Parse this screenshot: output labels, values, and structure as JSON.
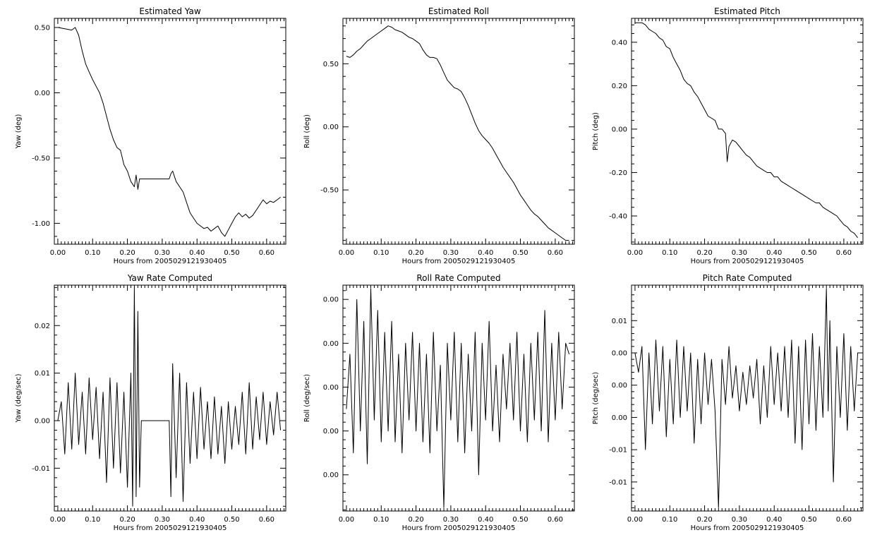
{
  "figure": {
    "background": "#ffffff",
    "line_color": "#000000"
  },
  "chart_data": [
    {
      "type": "line",
      "title": "Estimated Yaw",
      "xlabel": "Hours from 2005029121930405",
      "ylabel": "Yaw (deg)",
      "xlim": [
        -0.01,
        0.655
      ],
      "ylim": [
        -1.16,
        0.57
      ],
      "xticks": [
        0.0,
        0.1,
        0.2,
        0.3,
        0.4,
        0.5,
        0.6
      ],
      "xtick_labels": [
        "0.00",
        "0.10",
        "0.20",
        "0.30",
        "0.40",
        "0.50",
        "0.60"
      ],
      "yticks": [
        0.5,
        0.0,
        -0.5,
        -1.0
      ],
      "ytick_labels": [
        "0.50",
        "0.00",
        "-0.50",
        "-1.00"
      ],
      "grid": false,
      "series": [
        {
          "x": [
            0.0,
            0.02,
            0.04,
            0.05,
            0.06,
            0.07,
            0.08,
            0.09,
            0.1,
            0.11,
            0.12,
            0.13,
            0.14,
            0.15,
            0.16,
            0.17,
            0.18,
            0.19,
            0.2,
            0.21,
            0.22,
            0.225,
            0.23,
            0.235,
            0.25,
            0.28,
            0.32,
            0.325,
            0.33,
            0.335,
            0.34,
            0.35,
            0.36,
            0.37,
            0.38,
            0.39,
            0.4,
            0.41,
            0.42,
            0.43,
            0.44,
            0.45,
            0.46,
            0.47,
            0.48,
            0.49,
            0.5,
            0.51,
            0.52,
            0.53,
            0.54,
            0.55,
            0.56,
            0.57,
            0.58,
            0.59,
            0.6,
            0.61,
            0.62,
            0.63,
            0.64
          ],
          "y": [
            0.5,
            0.49,
            0.48,
            0.5,
            0.44,
            0.32,
            0.22,
            0.16,
            0.1,
            0.05,
            0.0,
            -0.08,
            -0.18,
            -0.28,
            -0.36,
            -0.42,
            -0.44,
            -0.55,
            -0.6,
            -0.68,
            -0.72,
            -0.63,
            -0.74,
            -0.66,
            -0.66,
            -0.66,
            -0.66,
            -0.62,
            -0.6,
            -0.64,
            -0.68,
            -0.72,
            -0.76,
            -0.84,
            -0.92,
            -0.96,
            -1.0,
            -1.02,
            -1.04,
            -1.03,
            -1.06,
            -1.04,
            -1.02,
            -1.07,
            -1.1,
            -1.05,
            -1.0,
            -0.95,
            -0.92,
            -0.95,
            -0.93,
            -0.96,
            -0.94,
            -0.9,
            -0.86,
            -0.82,
            -0.85,
            -0.83,
            -0.84,
            -0.82,
            -0.8
          ]
        }
      ]
    },
    {
      "type": "line",
      "title": "Estimated Roll",
      "xlabel": "Hours from 2005029121930405",
      "ylabel": "Roll (deg)",
      "xlim": [
        -0.01,
        0.655
      ],
      "ylim": [
        -0.93,
        0.86
      ],
      "xticks": [
        0.0,
        0.1,
        0.2,
        0.3,
        0.4,
        0.5,
        0.6
      ],
      "xtick_labels": [
        "0.00",
        "0.10",
        "0.20",
        "0.30",
        "0.40",
        "0.50",
        "0.60"
      ],
      "yticks": [
        0.5,
        0.0,
        -0.5
      ],
      "ytick_labels": [
        "0.50",
        "0.00",
        "-0.50"
      ],
      "grid": false,
      "series": [
        {
          "x": [
            0.0,
            0.01,
            0.02,
            0.03,
            0.04,
            0.05,
            0.06,
            0.07,
            0.08,
            0.09,
            0.1,
            0.11,
            0.12,
            0.13,
            0.14,
            0.15,
            0.16,
            0.17,
            0.18,
            0.19,
            0.2,
            0.21,
            0.22,
            0.23,
            0.24,
            0.25,
            0.26,
            0.27,
            0.28,
            0.29,
            0.3,
            0.31,
            0.32,
            0.33,
            0.34,
            0.35,
            0.36,
            0.37,
            0.38,
            0.39,
            0.4,
            0.41,
            0.42,
            0.43,
            0.44,
            0.45,
            0.46,
            0.47,
            0.48,
            0.49,
            0.5,
            0.51,
            0.52,
            0.53,
            0.54,
            0.55,
            0.56,
            0.57,
            0.58,
            0.59,
            0.6,
            0.61,
            0.62,
            0.63,
            0.64
          ],
          "y": [
            0.56,
            0.55,
            0.57,
            0.6,
            0.62,
            0.65,
            0.68,
            0.7,
            0.72,
            0.74,
            0.76,
            0.78,
            0.8,
            0.79,
            0.77,
            0.76,
            0.75,
            0.73,
            0.71,
            0.7,
            0.68,
            0.66,
            0.61,
            0.57,
            0.55,
            0.55,
            0.54,
            0.49,
            0.43,
            0.37,
            0.34,
            0.31,
            0.3,
            0.28,
            0.23,
            0.17,
            0.1,
            0.03,
            -0.03,
            -0.07,
            -0.1,
            -0.13,
            -0.17,
            -0.22,
            -0.27,
            -0.32,
            -0.36,
            -0.4,
            -0.44,
            -0.49,
            -0.54,
            -0.58,
            -0.62,
            -0.66,
            -0.69,
            -0.71,
            -0.74,
            -0.77,
            -0.8,
            -0.82,
            -0.84,
            -0.86,
            -0.88,
            -0.9,
            -0.9
          ]
        }
      ]
    },
    {
      "type": "line",
      "title": "Estimated Pitch",
      "xlabel": "Hours from 2005029121930405",
      "ylabel": "Pitch (deg)",
      "xlim": [
        -0.01,
        0.655
      ],
      "ylim": [
        -0.53,
        0.51
      ],
      "xticks": [
        0.0,
        0.1,
        0.2,
        0.3,
        0.4,
        0.5,
        0.6
      ],
      "xtick_labels": [
        "0.00",
        "0.10",
        "0.20",
        "0.30",
        "0.40",
        "0.50",
        "0.60"
      ],
      "yticks": [
        0.4,
        0.2,
        0.0,
        -0.2,
        -0.4
      ],
      "ytick_labels": [
        "0.40",
        "0.20",
        "0.00",
        "-0.20",
        "-0.40"
      ],
      "grid": false,
      "series": [
        {
          "x": [
            0.0,
            0.02,
            0.03,
            0.04,
            0.05,
            0.06,
            0.07,
            0.08,
            0.09,
            0.1,
            0.11,
            0.12,
            0.13,
            0.14,
            0.15,
            0.16,
            0.17,
            0.18,
            0.19,
            0.2,
            0.21,
            0.22,
            0.23,
            0.24,
            0.25,
            0.26,
            0.265,
            0.27,
            0.28,
            0.29,
            0.3,
            0.31,
            0.32,
            0.33,
            0.34,
            0.35,
            0.36,
            0.37,
            0.38,
            0.39,
            0.4,
            0.41,
            0.42,
            0.43,
            0.44,
            0.45,
            0.46,
            0.47,
            0.48,
            0.49,
            0.5,
            0.51,
            0.52,
            0.53,
            0.54,
            0.55,
            0.56,
            0.57,
            0.58,
            0.59,
            0.6,
            0.61,
            0.62,
            0.63,
            0.64
          ],
          "y": [
            0.49,
            0.49,
            0.48,
            0.46,
            0.45,
            0.44,
            0.42,
            0.41,
            0.38,
            0.37,
            0.33,
            0.3,
            0.27,
            0.23,
            0.21,
            0.2,
            0.17,
            0.15,
            0.12,
            0.09,
            0.06,
            0.05,
            0.04,
            0.0,
            0.0,
            -0.02,
            -0.15,
            -0.08,
            -0.05,
            -0.06,
            -0.08,
            -0.1,
            -0.12,
            -0.13,
            -0.15,
            -0.17,
            -0.18,
            -0.19,
            -0.2,
            -0.2,
            -0.22,
            -0.22,
            -0.24,
            -0.25,
            -0.26,
            -0.27,
            -0.28,
            -0.29,
            -0.3,
            -0.31,
            -0.32,
            -0.33,
            -0.34,
            -0.34,
            -0.36,
            -0.37,
            -0.38,
            -0.39,
            -0.4,
            -0.42,
            -0.44,
            -0.45,
            -0.47,
            -0.48,
            -0.5
          ]
        }
      ]
    },
    {
      "type": "line",
      "title": "Yaw Rate Computed",
      "xlabel": "Hours from 2005029121930405",
      "ylabel": "Yaw (deg/sec)",
      "xlim": [
        -0.01,
        0.655
      ],
      "ylim": [
        -0.019,
        0.0285
      ],
      "xticks": [
        0.0,
        0.1,
        0.2,
        0.3,
        0.4,
        0.5,
        0.6
      ],
      "xtick_labels": [
        "0.00",
        "0.10",
        "0.20",
        "0.30",
        "0.40",
        "0.50",
        "0.60"
      ],
      "yticks": [
        0.02,
        0.01,
        0.0,
        -0.01
      ],
      "ytick_labels": [
        "0.02",
        "0.01",
        "0.00",
        "-0.01"
      ],
      "grid": false,
      "series": [
        {
          "x": [
            0.0,
            0.01,
            0.02,
            0.03,
            0.04,
            0.05,
            0.06,
            0.07,
            0.08,
            0.09,
            0.1,
            0.11,
            0.12,
            0.13,
            0.14,
            0.15,
            0.16,
            0.17,
            0.18,
            0.19,
            0.2,
            0.21,
            0.215,
            0.22,
            0.225,
            0.23,
            0.235,
            0.24,
            0.28,
            0.32,
            0.325,
            0.33,
            0.34,
            0.35,
            0.36,
            0.37,
            0.38,
            0.39,
            0.4,
            0.41,
            0.42,
            0.43,
            0.44,
            0.45,
            0.46,
            0.47,
            0.48,
            0.49,
            0.5,
            0.51,
            0.52,
            0.53,
            0.54,
            0.55,
            0.56,
            0.57,
            0.58,
            0.59,
            0.6,
            0.61,
            0.62,
            0.63,
            0.64
          ],
          "y": [
            0.0,
            0.004,
            -0.007,
            0.008,
            -0.006,
            0.01,
            -0.005,
            0.006,
            -0.007,
            0.009,
            -0.004,
            0.007,
            -0.008,
            0.006,
            -0.013,
            0.009,
            -0.01,
            0.008,
            -0.011,
            0.006,
            -0.014,
            0.01,
            -0.018,
            0.028,
            -0.016,
            0.023,
            -0.014,
            0.0,
            0.0,
            0.0,
            -0.016,
            0.012,
            -0.012,
            0.01,
            -0.017,
            0.008,
            -0.009,
            0.006,
            -0.008,
            0.007,
            -0.006,
            0.004,
            -0.008,
            0.005,
            -0.007,
            0.003,
            -0.009,
            0.004,
            -0.006,
            0.003,
            -0.005,
            0.006,
            -0.007,
            0.008,
            -0.006,
            0.005,
            -0.004,
            0.006,
            -0.005,
            0.004,
            -0.003,
            0.006,
            -0.002
          ]
        }
      ]
    },
    {
      "type": "line",
      "title": "Roll Rate Computed",
      "xlabel": "Hours from 2005029121930405",
      "ylabel": "Roll (deg/sec)",
      "xlim": [
        -0.01,
        0.655
      ],
      "ylim": [
        -0.0113,
        0.0093
      ],
      "xticks": [
        0.0,
        0.1,
        0.2,
        0.3,
        0.4,
        0.5,
        0.6
      ],
      "xtick_labels": [
        "0.00",
        "0.10",
        "0.20",
        "0.30",
        "0.40",
        "0.50",
        "0.60"
      ],
      "yticks": [
        0.008,
        0.004,
        0.0,
        -0.004,
        -0.008
      ],
      "ytick_labels": [
        "0.00",
        "0.00",
        "0.00",
        "0.00",
        "0.00"
      ],
      "grid": false,
      "series": [
        {
          "x": [
            0.0,
            0.01,
            0.02,
            0.03,
            0.04,
            0.05,
            0.06,
            0.07,
            0.08,
            0.09,
            0.1,
            0.11,
            0.12,
            0.13,
            0.14,
            0.15,
            0.16,
            0.17,
            0.18,
            0.19,
            0.2,
            0.21,
            0.22,
            0.23,
            0.24,
            0.25,
            0.26,
            0.27,
            0.28,
            0.29,
            0.3,
            0.31,
            0.32,
            0.33,
            0.34,
            0.35,
            0.36,
            0.37,
            0.38,
            0.39,
            0.4,
            0.41,
            0.42,
            0.43,
            0.44,
            0.45,
            0.46,
            0.47,
            0.48,
            0.49,
            0.5,
            0.51,
            0.52,
            0.53,
            0.54,
            0.55,
            0.56,
            0.57,
            0.58,
            0.59,
            0.6,
            0.61,
            0.62,
            0.63,
            0.64
          ],
          "y": [
            -0.002,
            0.003,
            -0.006,
            0.008,
            -0.004,
            0.006,
            -0.007,
            0.009,
            -0.003,
            0.007,
            -0.005,
            0.005,
            -0.004,
            0.006,
            -0.005,
            0.003,
            -0.006,
            0.004,
            -0.003,
            0.005,
            -0.004,
            0.004,
            -0.005,
            0.003,
            -0.006,
            0.005,
            -0.004,
            0.002,
            -0.011,
            0.004,
            -0.003,
            0.005,
            -0.005,
            0.004,
            -0.006,
            0.003,
            -0.004,
            0.005,
            -0.008,
            0.004,
            -0.003,
            0.006,
            -0.004,
            0.002,
            -0.005,
            0.003,
            -0.002,
            0.004,
            -0.003,
            0.005,
            -0.004,
            0.003,
            -0.005,
            0.004,
            -0.003,
            0.005,
            -0.004,
            0.007,
            -0.005,
            0.004,
            -0.003,
            0.005,
            -0.002,
            0.004,
            0.003
          ]
        }
      ]
    },
    {
      "type": "line",
      "title": "Pitch Rate Computed",
      "xlabel": "Hours from 2005029121930405",
      "ylabel": "Pitch (deg/sec)",
      "xlim": [
        -0.01,
        0.655
      ],
      "ylim": [
        -0.0195,
        0.0155
      ],
      "xticks": [
        0.0,
        0.1,
        0.2,
        0.3,
        0.4,
        0.5,
        0.6
      ],
      "xtick_labels": [
        "0.00",
        "0.10",
        "0.20",
        "0.30",
        "0.40",
        "0.50",
        "0.60"
      ],
      "yticks": [
        0.01,
        0.005,
        0.0,
        -0.005,
        -0.01,
        -0.015
      ],
      "ytick_labels": [
        "0.01",
        "0.00",
        "0.00",
        "0.00",
        "-0.01",
        "-0.01"
      ],
      "grid": false,
      "series": [
        {
          "x": [
            0.0,
            0.01,
            0.02,
            0.03,
            0.04,
            0.05,
            0.06,
            0.07,
            0.08,
            0.09,
            0.1,
            0.11,
            0.12,
            0.13,
            0.14,
            0.15,
            0.16,
            0.17,
            0.18,
            0.19,
            0.2,
            0.21,
            0.22,
            0.23,
            0.24,
            0.25,
            0.26,
            0.27,
            0.28,
            0.29,
            0.3,
            0.31,
            0.32,
            0.33,
            0.34,
            0.35,
            0.36,
            0.37,
            0.38,
            0.39,
            0.4,
            0.41,
            0.42,
            0.43,
            0.44,
            0.45,
            0.46,
            0.47,
            0.48,
            0.49,
            0.5,
            0.51,
            0.52,
            0.53,
            0.54,
            0.55,
            0.555,
            0.56,
            0.57,
            0.58,
            0.59,
            0.6,
            0.61,
            0.62,
            0.63,
            0.64
          ],
          "y": [
            0.005,
            0.002,
            0.006,
            -0.01,
            0.005,
            -0.006,
            0.007,
            -0.004,
            0.006,
            -0.008,
            0.004,
            -0.006,
            0.007,
            -0.005,
            0.006,
            -0.004,
            0.005,
            -0.009,
            0.004,
            -0.006,
            0.005,
            -0.003,
            0.004,
            -0.004,
            -0.019,
            0.004,
            -0.003,
            0.006,
            -0.002,
            0.003,
            -0.004,
            0.002,
            -0.003,
            0.003,
            -0.002,
            0.004,
            -0.006,
            0.003,
            -0.005,
            0.006,
            -0.003,
            0.005,
            -0.004,
            0.006,
            -0.005,
            0.007,
            -0.009,
            0.006,
            -0.01,
            0.007,
            -0.006,
            0.008,
            -0.007,
            0.006,
            -0.005,
            0.015,
            -0.004,
            0.01,
            -0.015,
            0.006,
            -0.005,
            0.008,
            -0.007,
            0.006,
            -0.004,
            0.005
          ]
        }
      ]
    }
  ]
}
